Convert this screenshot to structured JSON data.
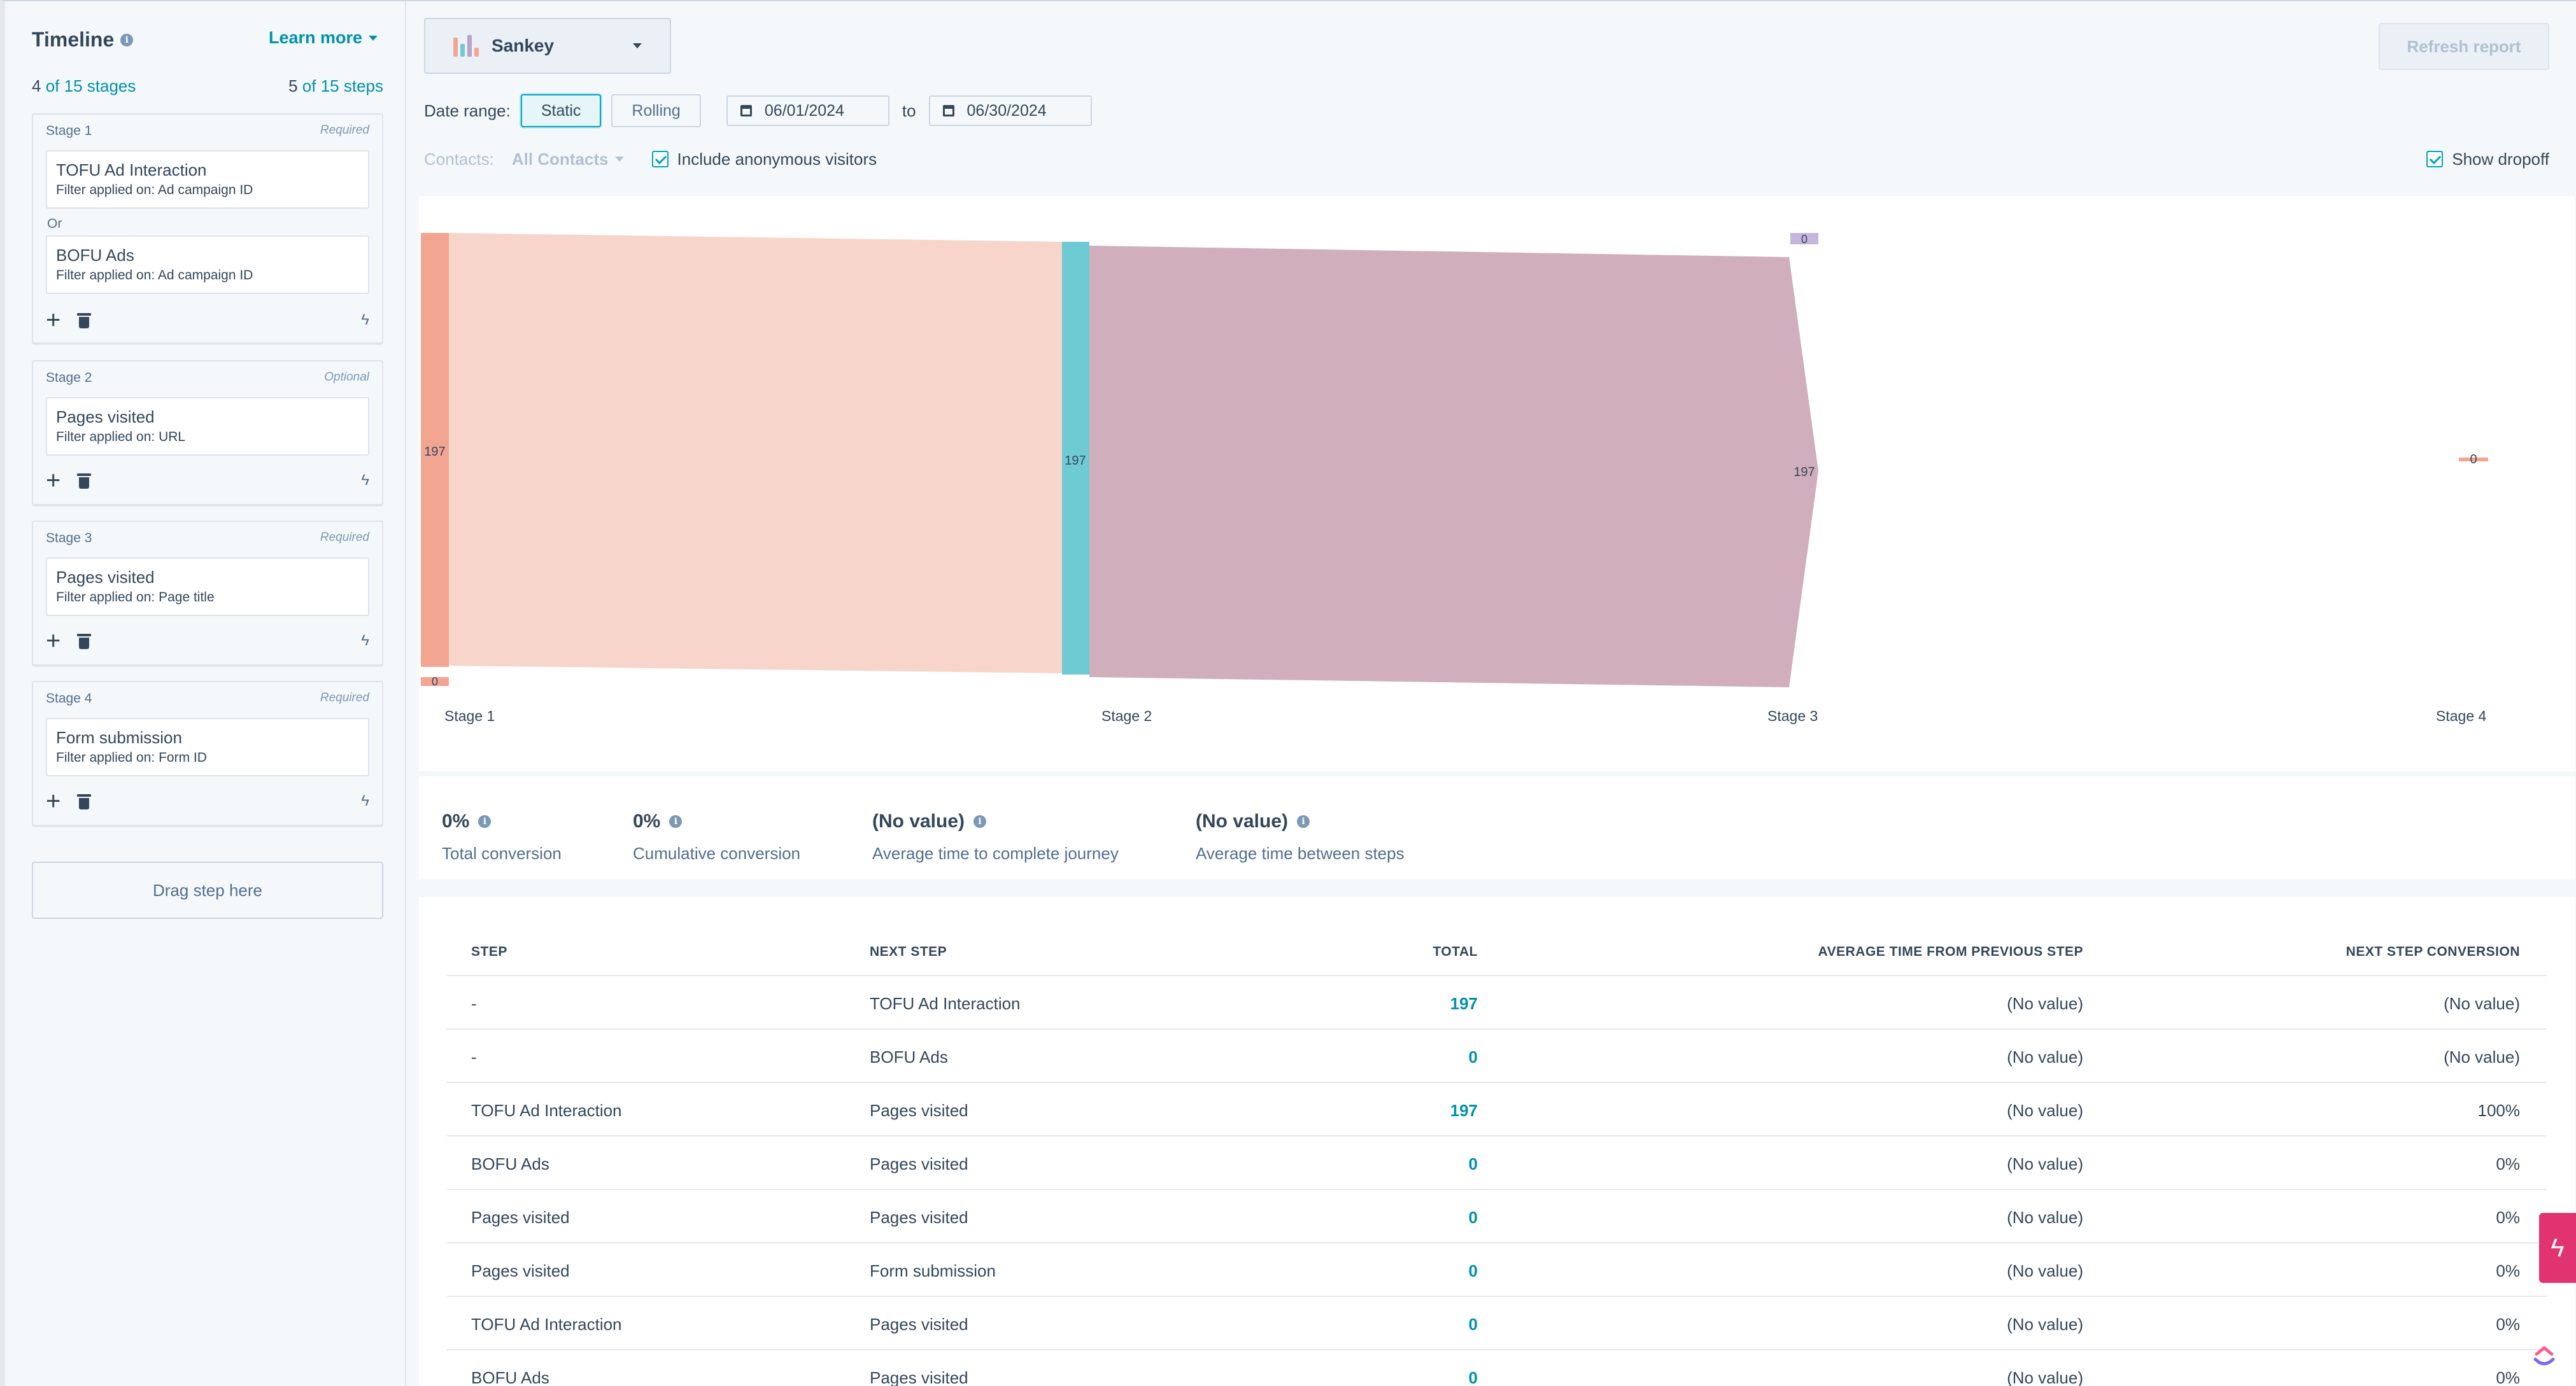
{
  "sidebar": {
    "title": "Timeline",
    "learn_more": "Learn more",
    "stages_count": "4",
    "stages_of": "of 15 stages",
    "steps_count": "5",
    "steps_of": "of 15 steps",
    "stages": [
      {
        "label": "Stage 1",
        "requirement": "Required",
        "or_label": "Or",
        "steps": [
          {
            "name": "TOFU Ad Interaction",
            "filter": "Filter applied on: Ad campaign ID"
          },
          {
            "name": "BOFU Ads",
            "filter": "Filter applied on: Ad campaign ID"
          }
        ]
      },
      {
        "label": "Stage 2",
        "requirement": "Optional",
        "steps": [
          {
            "name": "Pages visited",
            "filter": "Filter applied on: URL"
          }
        ]
      },
      {
        "label": "Stage 3",
        "requirement": "Required",
        "steps": [
          {
            "name": "Pages visited",
            "filter": "Filter applied on: Page title"
          }
        ]
      },
      {
        "label": "Stage 4",
        "requirement": "Required",
        "steps": [
          {
            "name": "Form submission",
            "filter": "Filter applied on: Form ID"
          }
        ]
      }
    ],
    "drag_here": "Drag step here"
  },
  "toolbar": {
    "visualization": "Sankey",
    "refresh": "Refresh report",
    "date_range_label": "Date range:",
    "static": "Static",
    "rolling": "Rolling",
    "start_date": "06/01/2024",
    "to": "to",
    "end_date": "06/30/2024",
    "contacts_label": "Contacts:",
    "contacts_value": "All Contacts",
    "include_anonymous": "Include anonymous visitors",
    "show_dropoff": "Show dropoff"
  },
  "colors": {
    "stage1": "#f2a692",
    "stage2": "#6fcbd3",
    "flow1": "#f8d5ca",
    "flow2": "#d0aebb",
    "dropoff": "#c5b5dc",
    "accent": "#0091ae"
  },
  "chart_data": {
    "type": "sankey",
    "stages": [
      "Stage 1",
      "Stage 2",
      "Stage 3",
      "Stage 4"
    ],
    "node_values": [
      "197",
      "197",
      "197",
      "0"
    ],
    "dropoff_values": [
      "0",
      "0"
    ],
    "flows": [
      {
        "from": "Stage 1",
        "to": "Stage 2",
        "value": 197
      },
      {
        "from": "Stage 2",
        "to": "Stage 3",
        "value": 197
      }
    ]
  },
  "kpis": [
    {
      "value": "0%",
      "label": "Total conversion"
    },
    {
      "value": "0%",
      "label": "Cumulative conversion"
    },
    {
      "value": "(No value)",
      "label": "Average time to complete journey"
    },
    {
      "value": "(No value)",
      "label": "Average time between steps"
    }
  ],
  "table": {
    "headers": [
      "STEP",
      "NEXT STEP",
      "TOTAL",
      "AVERAGE TIME FROM PREVIOUS STEP",
      "NEXT STEP CONVERSION"
    ],
    "rows": [
      [
        "-",
        "TOFU Ad Interaction",
        "197",
        "(No value)",
        "(No value)"
      ],
      [
        "-",
        "BOFU Ads",
        "0",
        "(No value)",
        "(No value)"
      ],
      [
        "TOFU Ad Interaction",
        "Pages visited",
        "197",
        "(No value)",
        "100%"
      ],
      [
        "BOFU Ads",
        "Pages visited",
        "0",
        "(No value)",
        "0%"
      ],
      [
        "Pages visited",
        "Pages visited",
        "0",
        "(No value)",
        "0%"
      ],
      [
        "Pages visited",
        "Form submission",
        "0",
        "(No value)",
        "0%"
      ],
      [
        "TOFU Ad Interaction",
        "Pages visited",
        "0",
        "(No value)",
        "0%"
      ],
      [
        "BOFU Ads",
        "Pages visited",
        "0",
        "(No value)",
        "0%"
      ]
    ]
  }
}
